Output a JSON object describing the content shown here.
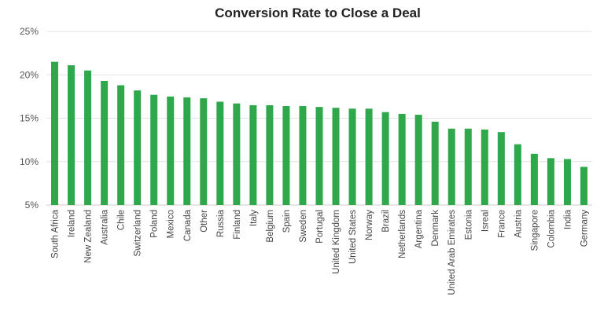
{
  "chart_data": {
    "type": "bar",
    "title": "Conversion Rate to Close a Deal",
    "xlabel": "",
    "ylabel": "",
    "ylim": [
      5,
      25
    ],
    "yticks": [
      5,
      10,
      15,
      20,
      25
    ],
    "ytick_suffix": "%",
    "grid": true,
    "bar_color": "#2ea84a",
    "categories": [
      "South Africa",
      "Ireland",
      "New Zealand",
      "Australia",
      "Chile",
      "Switzerland",
      "Poland",
      "Mexico",
      "Canada",
      "Other",
      "Russia",
      "Finland",
      "Italy",
      "Belgium",
      "Spain",
      "Sweden",
      "Portugal",
      "United Kingdom",
      "United States",
      "Norway",
      "Brazil",
      "Netherlands",
      "Argentina",
      "Denmark",
      "United Arab Emirates",
      "Estonia",
      "Isreal",
      "France",
      "Austria",
      "Singapore",
      "Colombia",
      "India",
      "Germany"
    ],
    "values": [
      21.5,
      21.1,
      20.5,
      19.3,
      18.8,
      18.2,
      17.7,
      17.5,
      17.4,
      17.3,
      16.9,
      16.7,
      16.5,
      16.5,
      16.4,
      16.4,
      16.3,
      16.2,
      16.1,
      16.1,
      15.7,
      15.5,
      15.4,
      14.6,
      13.8,
      13.8,
      13.7,
      13.4,
      12.0,
      10.9,
      10.4,
      10.3,
      9.4
    ]
  }
}
